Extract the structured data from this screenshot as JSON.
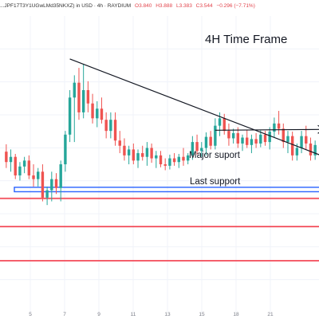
{
  "header": {
    "symbol": "...JPF17T3Y1UGwLMd35NKXZ) in USD · 4h · RAYDIUM",
    "open": "O3.840",
    "high": "H3.888",
    "low": "L3.383",
    "close": "C3.544",
    "change": "−0.296 (−7.71%)"
  },
  "colors": {
    "up": "#26a69a",
    "down": "#ef5350",
    "support_box": "#2962ff",
    "support_line": "#f23645",
    "trendline": "#131722"
  },
  "annotations": {
    "timeframe_label": "4H Time Frame",
    "major_support_label": "Major suport",
    "last_support_label": "Last support"
  },
  "chart_data": {
    "type": "candlestick",
    "x_ticks": [
      "5",
      "7",
      "9",
      "11",
      "13",
      "15",
      "18",
      "21"
    ],
    "ylim": [
      0,
      400
    ],
    "candles": [
      {
        "o": 217,
        "h": 227,
        "l": 195,
        "c": 203
      },
      {
        "o": 203,
        "h": 220,
        "l": 190,
        "c": 210
      },
      {
        "o": 210,
        "h": 214,
        "l": 180,
        "c": 185
      },
      {
        "o": 185,
        "h": 203,
        "l": 178,
        "c": 197
      },
      {
        "o": 197,
        "h": 210,
        "l": 188,
        "c": 205
      },
      {
        "o": 205,
        "h": 212,
        "l": 180,
        "c": 185
      },
      {
        "o": 185,
        "h": 200,
        "l": 170,
        "c": 180
      },
      {
        "o": 180,
        "h": 195,
        "l": 170,
        "c": 190
      },
      {
        "o": 190,
        "h": 200,
        "l": 150,
        "c": 155
      },
      {
        "o": 155,
        "h": 170,
        "l": 145,
        "c": 165
      },
      {
        "o": 165,
        "h": 190,
        "l": 150,
        "c": 180
      },
      {
        "o": 180,
        "h": 188,
        "l": 160,
        "c": 168
      },
      {
        "o": 168,
        "h": 205,
        "l": 150,
        "c": 200
      },
      {
        "o": 200,
        "h": 245,
        "l": 190,
        "c": 240
      },
      {
        "o": 240,
        "h": 300,
        "l": 230,
        "c": 290
      },
      {
        "o": 290,
        "h": 320,
        "l": 230,
        "c": 310
      },
      {
        "o": 310,
        "h": 330,
        "l": 260,
        "c": 270
      },
      {
        "o": 270,
        "h": 335,
        "l": 262,
        "c": 300
      },
      {
        "o": 300,
        "h": 312,
        "l": 270,
        "c": 282
      },
      {
        "o": 282,
        "h": 295,
        "l": 255,
        "c": 262
      },
      {
        "o": 262,
        "h": 285,
        "l": 250,
        "c": 275
      },
      {
        "o": 275,
        "h": 290,
        "l": 255,
        "c": 260
      },
      {
        "o": 260,
        "h": 270,
        "l": 235,
        "c": 245
      },
      {
        "o": 245,
        "h": 270,
        "l": 235,
        "c": 260
      },
      {
        "o": 260,
        "h": 270,
        "l": 225,
        "c": 232
      },
      {
        "o": 232,
        "h": 245,
        "l": 215,
        "c": 225
      },
      {
        "o": 225,
        "h": 235,
        "l": 205,
        "c": 212
      },
      {
        "o": 212,
        "h": 225,
        "l": 200,
        "c": 220
      },
      {
        "o": 220,
        "h": 228,
        "l": 200,
        "c": 205
      },
      {
        "o": 205,
        "h": 220,
        "l": 195,
        "c": 215
      },
      {
        "o": 215,
        "h": 225,
        "l": 205,
        "c": 210
      },
      {
        "o": 210,
        "h": 230,
        "l": 198,
        "c": 222
      },
      {
        "o": 222,
        "h": 228,
        "l": 202,
        "c": 208
      },
      {
        "o": 208,
        "h": 218,
        "l": 195,
        "c": 212
      },
      {
        "o": 212,
        "h": 218,
        "l": 196,
        "c": 200
      },
      {
        "o": 200,
        "h": 208,
        "l": 192,
        "c": 198
      },
      {
        "o": 198,
        "h": 213,
        "l": 193,
        "c": 208
      },
      {
        "o": 208,
        "h": 215,
        "l": 198,
        "c": 203
      },
      {
        "o": 203,
        "h": 214,
        "l": 195,
        "c": 210
      },
      {
        "o": 210,
        "h": 222,
        "l": 198,
        "c": 205
      },
      {
        "o": 205,
        "h": 215,
        "l": 200,
        "c": 212
      },
      {
        "o": 212,
        "h": 238,
        "l": 206,
        "c": 230
      },
      {
        "o": 230,
        "h": 240,
        "l": 213,
        "c": 218
      },
      {
        "o": 218,
        "h": 230,
        "l": 210,
        "c": 222
      },
      {
        "o": 222,
        "h": 243,
        "l": 212,
        "c": 237
      },
      {
        "o": 237,
        "h": 245,
        "l": 220,
        "c": 225
      },
      {
        "o": 225,
        "h": 262,
        "l": 220,
        "c": 252
      },
      {
        "o": 252,
        "h": 270,
        "l": 238,
        "c": 262
      },
      {
        "o": 262,
        "h": 268,
        "l": 240,
        "c": 245
      },
      {
        "o": 245,
        "h": 255,
        "l": 225,
        "c": 235
      },
      {
        "o": 235,
        "h": 248,
        "l": 228,
        "c": 242
      },
      {
        "o": 242,
        "h": 250,
        "l": 222,
        "c": 228
      },
      {
        "o": 228,
        "h": 240,
        "l": 218,
        "c": 236
      },
      {
        "o": 236,
        "h": 246,
        "l": 222,
        "c": 226
      },
      {
        "o": 226,
        "h": 240,
        "l": 215,
        "c": 234
      },
      {
        "o": 234,
        "h": 242,
        "l": 222,
        "c": 228
      },
      {
        "o": 228,
        "h": 246,
        "l": 223,
        "c": 240
      },
      {
        "o": 240,
        "h": 245,
        "l": 225,
        "c": 230
      },
      {
        "o": 230,
        "h": 250,
        "l": 220,
        "c": 244
      },
      {
        "o": 244,
        "h": 263,
        "l": 236,
        "c": 255
      },
      {
        "o": 255,
        "h": 272,
        "l": 240,
        "c": 248
      },
      {
        "o": 248,
        "h": 255,
        "l": 222,
        "c": 230
      },
      {
        "o": 230,
        "h": 245,
        "l": 215,
        "c": 238
      },
      {
        "o": 238,
        "h": 244,
        "l": 205,
        "c": 212
      },
      {
        "o": 212,
        "h": 228,
        "l": 205,
        "c": 222
      },
      {
        "o": 222,
        "h": 245,
        "l": 215,
        "c": 238
      },
      {
        "o": 238,
        "h": 252,
        "l": 220,
        "c": 228
      },
      {
        "o": 228,
        "h": 236,
        "l": 205,
        "c": 212
      },
      {
        "o": 212,
        "h": 232,
        "l": 206,
        "c": 226
      }
    ],
    "trendline": [
      {
        "x": 14,
        "y": 342
      },
      {
        "x": 70,
        "y": 195
      }
    ],
    "right_arrow": {
      "from": {
        "x": 46,
        "y": 247
      },
      "to": {
        "x": 70,
        "y": 247
      }
    },
    "zones": [
      {
        "name": "Major suport",
        "y": [
          163,
          169
        ],
        "kind": "box"
      },
      {
        "name": "Last support",
        "y": [
          153,
          155
        ],
        "kind": "line"
      },
      {
        "y": [
          115,
          117
        ],
        "kind": "line"
      },
      {
        "y": [
          69,
          71
        ],
        "kind": "line"
      }
    ]
  }
}
